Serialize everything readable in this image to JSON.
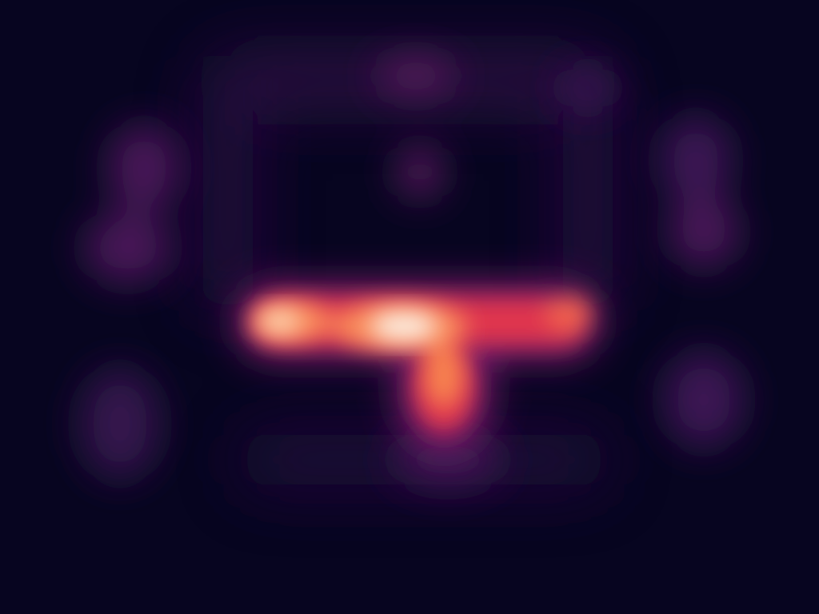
{
  "scene": {
    "kind": "attention-heatmap",
    "colormap": "magma",
    "background_color": "#070520",
    "palette": {
      "low": "#070520",
      "mid_low": "#3b1650",
      "mid": "#7a1f6d",
      "mid_high": "#e0344e",
      "high": "#f98c5a",
      "peak": "#fcf1e6"
    },
    "hotspot_count": 14
  }
}
